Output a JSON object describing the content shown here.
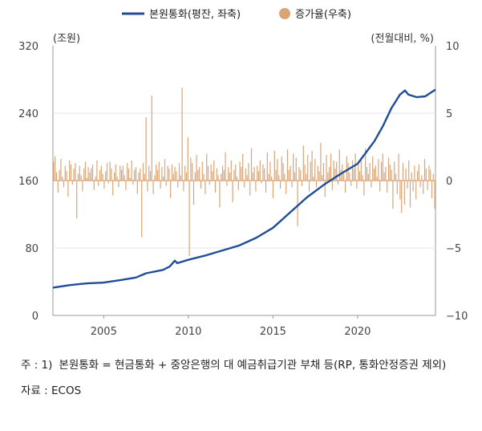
{
  "legend": {
    "line_label": "본원통화(평잔, 좌축)",
    "bar_label": "증가율(우축)"
  },
  "units": {
    "left": "(조원)",
    "right": "(전월대비, %)"
  },
  "colors": {
    "line": "#1f4e96",
    "bar": "#d9a577",
    "axis": "#9a9a9a",
    "grid": "#e6e6e6"
  },
  "notes": {
    "note_key": "주 : 1)",
    "note_text": "본원통화 = 현금통화 + 중앙은행의 대 예금취급기관 부채 등(RP, 통화안정증권 제외)",
    "source_key": "자료 : ",
    "source_text": "ECOS"
  },
  "chart_data": {
    "type": "line+bar",
    "x_range": [
      2002.0,
      2024.6
    ],
    "x_ticks": [
      2005,
      2010,
      2015,
      2020
    ],
    "left_axis": {
      "min": 0,
      "max": 320,
      "ticks": [
        0,
        80,
        160,
        240,
        320
      ]
    },
    "right_axis": {
      "min": -10,
      "max": 10,
      "ticks": [
        -10,
        -5,
        0,
        5,
        10
      ]
    },
    "series": [
      {
        "name": "본원통화(평잔, 좌축)",
        "axis": "left",
        "kind": "line",
        "points": [
          [
            2002.0,
            33
          ],
          [
            2003.0,
            36
          ],
          [
            2004.0,
            38
          ],
          [
            2005.0,
            39
          ],
          [
            2006.0,
            42
          ],
          [
            2006.9,
            45
          ],
          [
            2007.5,
            50
          ],
          [
            2008.5,
            54
          ],
          [
            2008.9,
            58
          ],
          [
            2009.2,
            65
          ],
          [
            2009.35,
            62
          ],
          [
            2010.0,
            66
          ],
          [
            2011.0,
            71
          ],
          [
            2012.0,
            77
          ],
          [
            2013.0,
            83
          ],
          [
            2014.0,
            92
          ],
          [
            2015.0,
            104
          ],
          [
            2016.0,
            122
          ],
          [
            2017.0,
            140
          ],
          [
            2018.0,
            155
          ],
          [
            2019.0,
            168
          ],
          [
            2020.0,
            180
          ],
          [
            2021.0,
            207
          ],
          [
            2021.5,
            225
          ],
          [
            2022.0,
            246
          ],
          [
            2022.5,
            262
          ],
          [
            2022.8,
            267
          ],
          [
            2023.0,
            262
          ],
          [
            2023.5,
            259
          ],
          [
            2024.0,
            260
          ],
          [
            2024.3,
            264
          ],
          [
            2024.6,
            268
          ]
        ]
      },
      {
        "name": "증가율(우축)",
        "axis": "right",
        "kind": "bar",
        "monthly_pct": [
          1.4,
          1.8,
          0.6,
          -0.9,
          0.8,
          1.6,
          0.3,
          -0.5,
          1.1,
          0.7,
          -1.2,
          1.5,
          1.2,
          -0.3,
          0.9,
          1.3,
          -2.8,
          0.5,
          1.1,
          0.4,
          -0.8,
          0.9,
          1.4,
          0.2,
          1.0,
          0.6,
          0.9,
          1.2,
          -0.7,
          0.3,
          1.5,
          -0.4,
          0.8,
          1.1,
          0.5,
          -0.6,
          0.7,
          1.3,
          -0.2,
          1.4,
          0.9,
          -1.1,
          0.6,
          1.2,
          0.3,
          -0.5,
          1.1,
          0.8,
          1.1,
          0.4,
          -0.7,
          1.3,
          0.9,
          0.2,
          1.5,
          -0.3,
          0.8,
          1.0,
          -1.0,
          0.6,
          0.9,
          -4.2,
          1.3,
          0.5,
          4.7,
          -0.8,
          1.1,
          0.7,
          6.3,
          -1.0,
          0.4,
          1.2,
          0.8,
          1.4,
          -0.6,
          1.0,
          0.3,
          1.6,
          -0.4,
          1.1,
          0.9,
          -1.3,
          1.2,
          0.5,
          1.0,
          0.7,
          -0.5,
          1.3,
          0.4,
          6.9,
          -0.8,
          1.1,
          0.6,
          3.2,
          -5.6,
          1.7,
          1.3,
          -1.8,
          0.6,
          1.9,
          0.8,
          1.0,
          -0.6,
          1.4,
          0.5,
          -1.0,
          2.0,
          1.1,
          -0.3,
          1.2,
          0.7,
          1.5,
          -0.9,
          0.9,
          0.4,
          -2.0,
          0.5,
          1.1,
          0.8,
          2.1,
          -0.4,
          1.0,
          0.6,
          1.5,
          -1.6,
          0.8,
          1.2,
          0.3,
          -0.7,
          1.4,
          1.0,
          2.0,
          -0.5,
          0.9,
          0.4,
          1.3,
          -1.1,
          2.4,
          0.6,
          1.0,
          -0.8,
          1.1,
          0.7,
          1.5,
          -0.2,
          1.2,
          0.9,
          -0.9,
          2.1,
          0.5,
          1.4,
          0.3,
          -1.3,
          2.2,
          0.8,
          1.6,
          0.4,
          -0.6,
          1.8,
          1.3,
          0.5,
          -1.0,
          2.3,
          0.8,
          1.1,
          -0.5,
          2.0,
          0.6,
          1.7,
          -3.4,
          1.0,
          0.8,
          -0.4,
          2.6,
          1.2,
          0.5,
          1.9,
          -0.8,
          1.4,
          2.2,
          0.3,
          1.6,
          -0.5,
          1.1,
          0.7,
          2.8,
          0.4,
          1.3,
          -1.2,
          1.9,
          0.6,
          1.0,
          2.0,
          -0.7,
          1.5,
          0.9,
          1.4,
          -0.3,
          2.3,
          0.8,
          1.2,
          0.5,
          -0.9,
          1.8,
          1.3,
          0.6,
          -0.4,
          1.5,
          0.9,
          2.0,
          -0.6,
          1.2,
          0.7,
          1.7,
          0.4,
          -1.1,
          2.4,
          1.0,
          0.5,
          1.3,
          -0.5,
          1.8,
          0.9,
          1.1,
          0.3,
          1.6,
          -0.8,
          1.4,
          2.0,
          0.6,
          1.0,
          -0.9,
          1.7,
          1.2,
          0.8,
          -2.1,
          1.4,
          0.5,
          -1.0,
          2.0,
          -1.4,
          -2.4,
          1.3,
          -1.8,
          0.9,
          -0.6,
          1.5,
          -2.0,
          0.6,
          -0.8,
          1.1,
          -1.4,
          0.7,
          1.2,
          -0.5,
          0.4,
          -1.0,
          1.6,
          0.9,
          -0.7,
          1.1,
          0.8,
          -1.3,
          0.5,
          -2.1
        ],
        "monthly_start": 2002.0
      }
    ]
  }
}
